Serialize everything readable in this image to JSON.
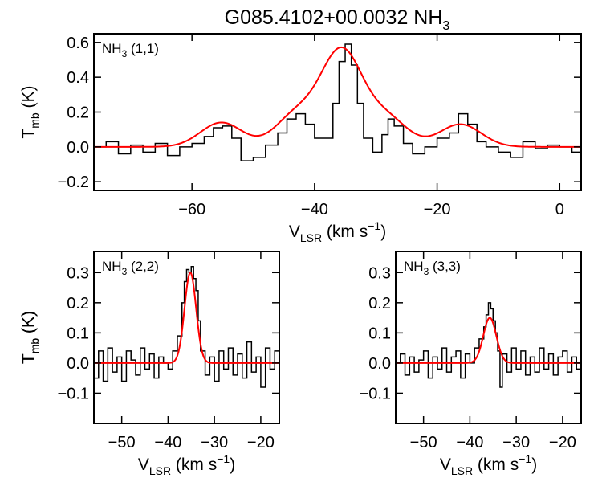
{
  "figure": {
    "title": "G085.4102+00.0032 NH",
    "title_sub": "3"
  },
  "chart_data": [
    {
      "type": "line",
      "panel": "NH3 (1,1)",
      "label": {
        "main": "NH",
        "sub": "3",
        "rest": " (1,1)"
      },
      "xlabel": {
        "main": "V",
        "sub": "LSR",
        "rest": " (km s",
        "sup": "−1",
        "close": ")"
      },
      "ylabel": {
        "main": "T",
        "sub": "mb",
        "rest": " (K)"
      },
      "xlim": [
        -76,
        3.5
      ],
      "ylim": [
        -0.25,
        0.65
      ],
      "xticks": [
        -60,
        -40,
        -20,
        0
      ],
      "xtick_labels": [
        "−60",
        "−40",
        "−20",
        "0"
      ],
      "yticks": [
        -0.2,
        0.0,
        0.2,
        0.4,
        0.6
      ],
      "ytick_labels": [
        "−0.2",
        "0.0",
        "0.2",
        "0.4",
        "0.6"
      ],
      "series": [
        {
          "style": "step",
          "color": "#000000",
          "x": [
            -76,
            -74,
            -72,
            -70,
            -68,
            -66,
            -64,
            -62,
            -60,
            -58,
            -56.5,
            -55,
            -53.5,
            -52,
            -50,
            -48,
            -46,
            -44.5,
            -43,
            -41.5,
            -40,
            -38.5,
            -37,
            -36,
            -35,
            -34,
            -33,
            -32,
            -30.5,
            -29,
            -28,
            -27,
            -25.5,
            -24,
            -22,
            -20,
            -18,
            -16.5,
            -15,
            -13.5,
            -12,
            -10,
            -8,
            -6,
            -4,
            -2,
            0,
            2,
            3.5
          ],
          "y": [
            0.0,
            0.03,
            -0.04,
            0.01,
            -0.03,
            0.02,
            -0.05,
            0.0,
            0.02,
            0.06,
            0.11,
            0.12,
            0.05,
            -0.08,
            -0.06,
            0.01,
            0.08,
            0.16,
            0.19,
            0.13,
            0.05,
            0.05,
            0.25,
            0.49,
            0.59,
            0.47,
            0.25,
            0.05,
            -0.03,
            0.07,
            0.16,
            0.12,
            0.02,
            -0.04,
            0.0,
            0.05,
            0.08,
            0.19,
            0.13,
            0.03,
            0.0,
            -0.03,
            -0.06,
            0.03,
            -0.01,
            0.01,
            0.0,
            -0.03,
            0.0
          ]
        },
        {
          "style": "fit",
          "color": "#ff0000",
          "components": [
            [
              -55.2,
              0.14,
              3.4
            ],
            [
              -43.0,
              0.18,
              3.4
            ],
            [
              -35.6,
              0.54,
              3.4
            ],
            [
              -28.2,
              0.16,
              3.4
            ],
            [
              -16.2,
              0.13,
              3.4
            ]
          ]
        }
      ]
    },
    {
      "type": "line",
      "panel": "NH3 (2,2)",
      "label": {
        "main": "NH",
        "sub": "3",
        "rest": " (2,2)"
      },
      "xlabel": {
        "main": "V",
        "sub": "LSR",
        "rest": " (km s",
        "sup": "−1",
        "close": ")"
      },
      "ylabel": {
        "main": "T",
        "sub": "mb",
        "rest": " (K)"
      },
      "xlim": [
        -56,
        -16
      ],
      "ylim": [
        -0.2,
        0.37
      ],
      "xticks": [
        -50,
        -40,
        -30,
        -20
      ],
      "xtick_labels": [
        "−50",
        "−40",
        "−30",
        "−20"
      ],
      "yticks": [
        -0.1,
        0.0,
        0.1,
        0.2,
        0.3
      ],
      "ytick_labels": [
        "−0.1",
        "0.0",
        "0.1",
        "0.2",
        "0.3"
      ],
      "series": [
        {
          "style": "step",
          "color": "#000000",
          "x": [
            -56,
            -55,
            -54,
            -53,
            -52,
            -51,
            -50,
            -49,
            -48,
            -47,
            -46,
            -45,
            -44,
            -43,
            -42,
            -41,
            -40,
            -39,
            -38,
            -37,
            -36.5,
            -36,
            -35.5,
            -35,
            -34.5,
            -34,
            -33.5,
            -33,
            -32,
            -31,
            -30,
            -29,
            -28,
            -27,
            -26,
            -25,
            -24,
            -23,
            -22,
            -21,
            -20,
            -19,
            -18,
            -17,
            -16
          ],
          "y": [
            -0.05,
            0.04,
            -0.06,
            0.05,
            -0.03,
            0.02,
            -0.06,
            0.04,
            0.01,
            -0.04,
            0.05,
            -0.02,
            0.03,
            -0.05,
            0.02,
            0.0,
            -0.02,
            0.04,
            0.09,
            0.2,
            0.27,
            0.31,
            0.3,
            0.32,
            0.28,
            0.24,
            0.14,
            0.04,
            -0.04,
            0.02,
            -0.06,
            0.04,
            -0.02,
            0.05,
            -0.04,
            0.03,
            -0.05,
            0.07,
            -0.03,
            0.02,
            -0.08,
            0.05,
            -0.02,
            0.04,
            -0.01
          ]
        },
        {
          "style": "fit",
          "color": "#ff0000",
          "components": [
            [
              -35.2,
              0.3,
              1.25
            ]
          ]
        }
      ]
    },
    {
      "type": "line",
      "panel": "NH3 (3,3)",
      "label": {
        "main": "NH",
        "sub": "3",
        "rest": " (3,3)"
      },
      "xlabel": {
        "main": "V",
        "sub": "LSR",
        "rest": " (km s",
        "sup": "−1",
        "close": ")"
      },
      "ylabel": {
        "main": "T",
        "sub": "mb",
        "rest": " (K)"
      },
      "xlim": [
        -56,
        -16
      ],
      "ylim": [
        -0.2,
        0.37
      ],
      "xticks": [
        -50,
        -40,
        -30,
        -20
      ],
      "xtick_labels": [
        "−50",
        "−40",
        "−30",
        "−20"
      ],
      "yticks": [
        -0.1,
        0.0,
        0.1,
        0.2,
        0.3
      ],
      "ytick_labels": [
        "−0.1",
        "0.0",
        "0.1",
        "0.2",
        "0.3"
      ],
      "series": [
        {
          "style": "step",
          "color": "#000000",
          "x": [
            -56,
            -55,
            -54,
            -53,
            -52,
            -51,
            -50,
            -49,
            -48,
            -47,
            -46,
            -45,
            -44,
            -43,
            -42,
            -41,
            -40,
            -39,
            -38,
            -37,
            -36.5,
            -36,
            -35.5,
            -35,
            -34.5,
            -34,
            -33.5,
            -33,
            -32,
            -31,
            -30,
            -29,
            -28,
            -27,
            -26,
            -25,
            -24,
            -23,
            -22,
            -21,
            -20,
            -19,
            -18,
            -17,
            -16
          ],
          "y": [
            0.0,
            0.03,
            -0.04,
            0.02,
            -0.03,
            0.01,
            0.04,
            -0.05,
            0.02,
            -0.02,
            0.05,
            -0.03,
            0.02,
            0.04,
            -0.05,
            0.03,
            0.0,
            0.05,
            0.08,
            0.12,
            0.16,
            0.2,
            0.18,
            0.14,
            0.1,
            0.04,
            -0.08,
            0.03,
            -0.03,
            0.05,
            -0.02,
            0.04,
            -0.04,
            0.02,
            -0.03,
            0.05,
            -0.02,
            0.03,
            -0.04,
            0.02,
            0.04,
            -0.03,
            0.02,
            -0.02,
            0.01
          ]
        },
        {
          "style": "fit",
          "color": "#ff0000",
          "components": [
            [
              -35.7,
              0.15,
              1.4
            ]
          ]
        }
      ]
    }
  ]
}
